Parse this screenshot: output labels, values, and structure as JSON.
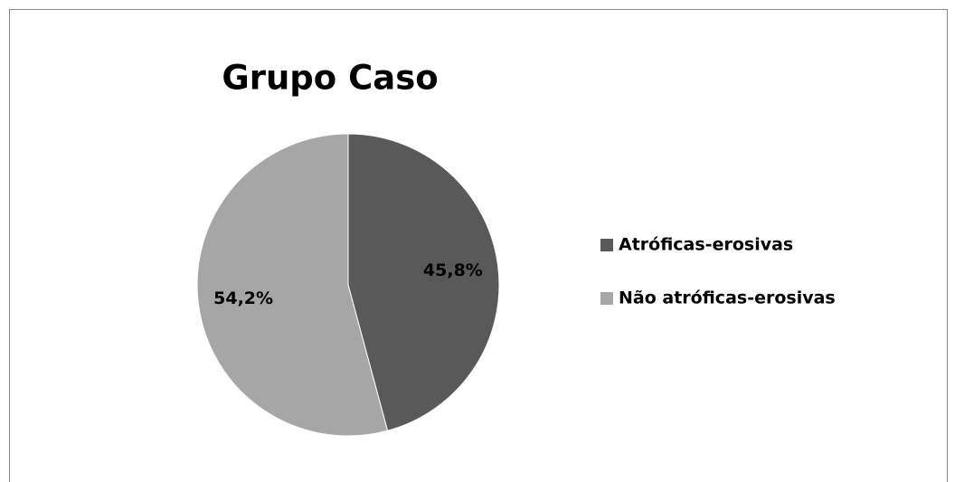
{
  "chart_data": {
    "type": "pie",
    "title": "Grupo Caso",
    "categories": [
      "Atróficas-erosivas",
      "Não atróficas-erosivas"
    ],
    "values": [
      45.8,
      54.2
    ],
    "value_labels": [
      "45,8%",
      "54,2%"
    ],
    "colors": [
      "#595959",
      "#a6a6a6"
    ],
    "legend": "right"
  }
}
